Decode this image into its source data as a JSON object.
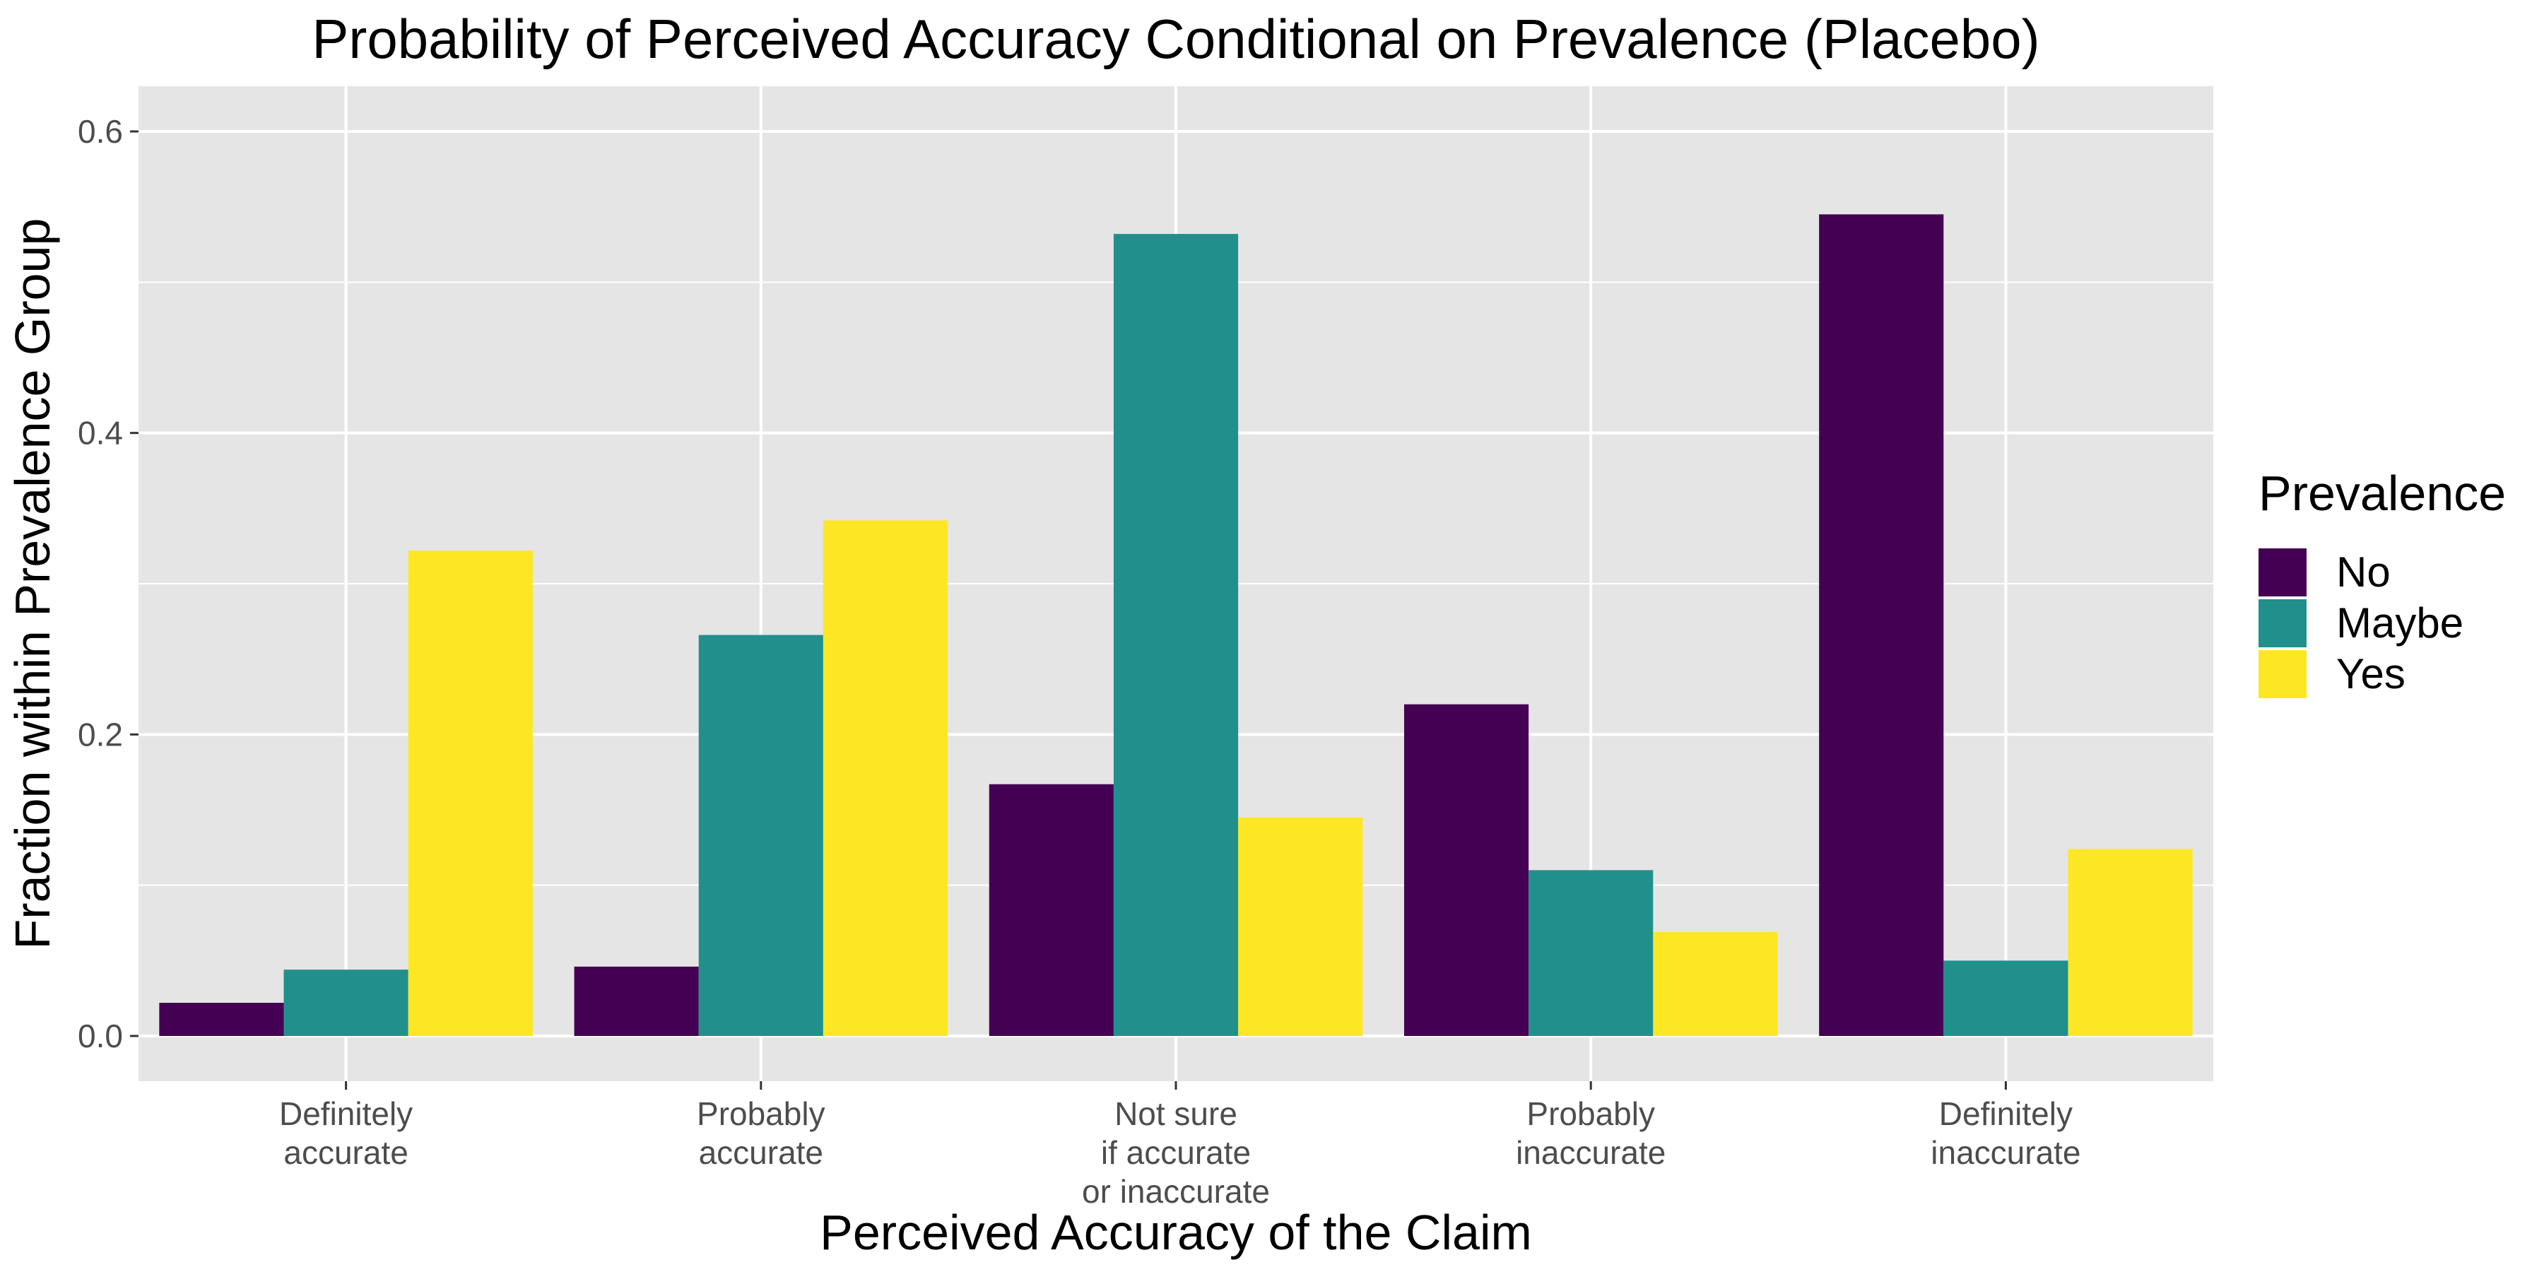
{
  "chart_data": {
    "type": "bar",
    "title": "Probability of Perceived Accuracy Conditional on Prevalence (Placebo)",
    "xlabel": "Perceived Accuracy of the Claim",
    "ylabel": "Fraction within Prevalence Group",
    "categories": [
      [
        "Definitely",
        "accurate"
      ],
      [
        "Probably",
        "accurate"
      ],
      [
        "Not sure",
        "if accurate",
        "or inaccurate"
      ],
      [
        "Probably",
        "inaccurate"
      ],
      [
        "Definitely",
        "inaccurate"
      ]
    ],
    "series": [
      {
        "name": "No",
        "color": "#440154",
        "values": [
          0.022,
          0.046,
          0.167,
          0.22,
          0.545
        ]
      },
      {
        "name": "Maybe",
        "color": "#21908C",
        "values": [
          0.044,
          0.266,
          0.532,
          0.11,
          0.05
        ]
      },
      {
        "name": "Yes",
        "color": "#FDE725",
        "values": [
          0.322,
          0.342,
          0.145,
          0.069,
          0.124
        ]
      }
    ],
    "ylim": [
      -0.03,
      0.63
    ],
    "yticks": [
      0.0,
      0.2,
      0.4,
      0.6
    ],
    "ytick_labels": [
      "0.0",
      "0.2",
      "0.4",
      "0.6"
    ],
    "legend": {
      "title": "Prevalence",
      "position": "right"
    },
    "grid": true,
    "panel_background": "#E5E5E5",
    "grid_color": "#FFFFFF"
  }
}
